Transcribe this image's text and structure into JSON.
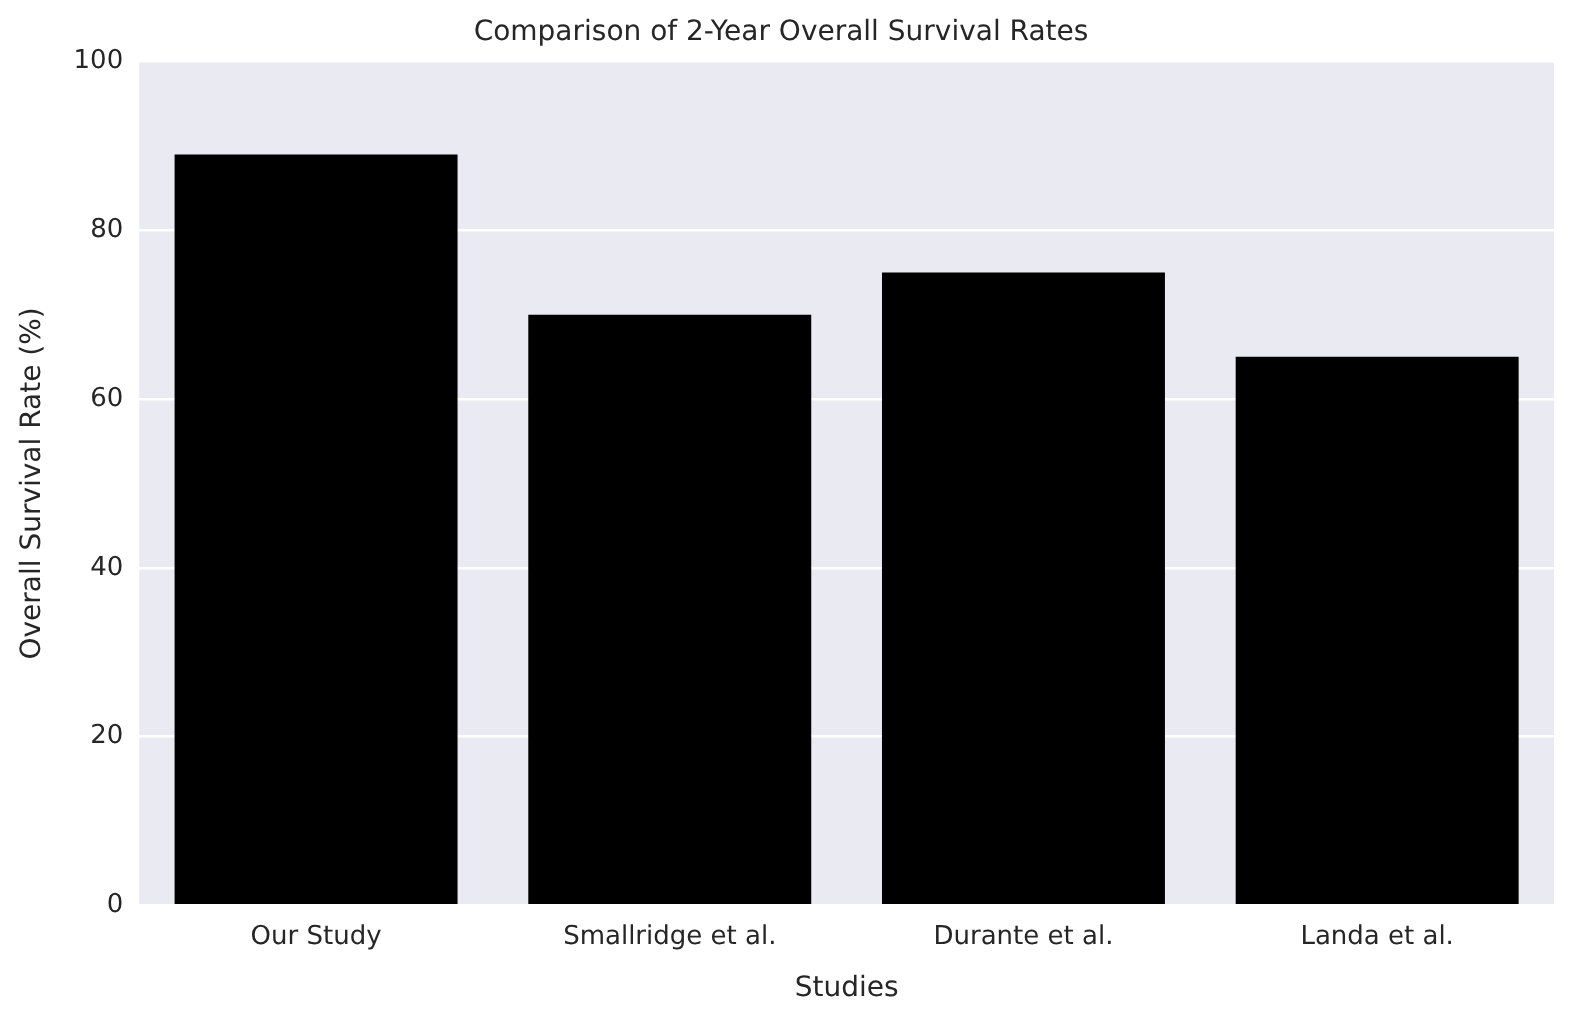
{
  "chart_data": {
    "type": "bar",
    "title": "Comparison of 2-Year Overall Survival Rates",
    "xlabel": "Studies",
    "ylabel": "Overall Survival Rate (%)",
    "categories": [
      "Our Study",
      "Smallridge et al.",
      "Durante et al.",
      "Landa et al."
    ],
    "values": [
      89,
      70,
      75,
      65
    ],
    "color": "#000000",
    "ylim": [
      0,
      100
    ],
    "yticks": [
      0,
      20,
      40,
      60,
      80,
      100
    ],
    "grid": "y",
    "legend": false
  }
}
